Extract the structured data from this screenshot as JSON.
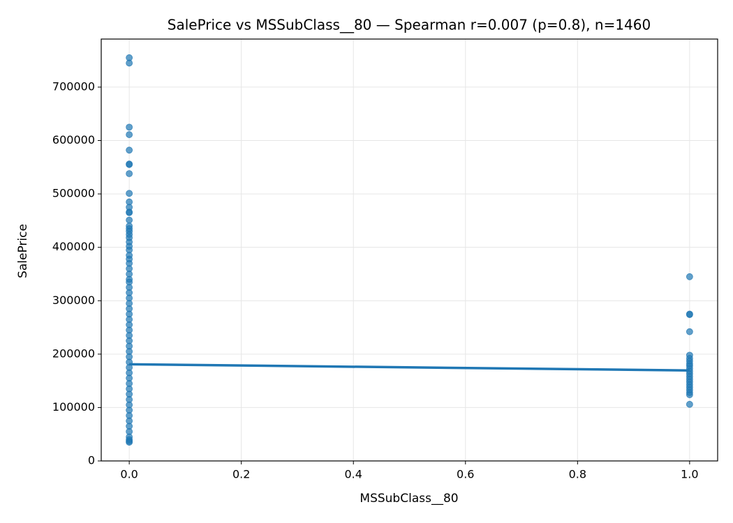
{
  "chart_data": {
    "type": "scatter",
    "title": "SalePrice vs MSSubClass__80 — Spearman r=0.007 (p=0.8), n=1460",
    "x_label": "MSSubClass__80",
    "y_label": "SalePrice",
    "color": "#1f77b4",
    "fit_color": "#1f77b4",
    "grid": true,
    "xlim": [
      -0.05,
      1.05
    ],
    "ylim": [
      0,
      790000
    ],
    "xticks": [
      {
        "value": 0,
        "label": "0.0"
      },
      0.2,
      0.4,
      0.6,
      0.8,
      {
        "value": 1,
        "label": "1.0"
      }
    ],
    "yticks": [
      0,
      100000,
      200000,
      300000,
      400000,
      500000,
      600000,
      700000
    ],
    "points": {
      "x": [
        0,
        0,
        0,
        0,
        0,
        0,
        0,
        0,
        0,
        0,
        0,
        0,
        0,
        0,
        0,
        0,
        0,
        0,
        0,
        0,
        0,
        0,
        0,
        0,
        0,
        0,
        0,
        0,
        0,
        0,
        0,
        0,
        0,
        0,
        0,
        0,
        0,
        0,
        0,
        0,
        0,
        0,
        0,
        0,
        0,
        0,
        0,
        0,
        0,
        0,
        0,
        0,
        0,
        0,
        0,
        0,
        0,
        0,
        0,
        0,
        0,
        1,
        1,
        1,
        1,
        1,
        1,
        1,
        1,
        1,
        1,
        1,
        1,
        1,
        1,
        1,
        1,
        1,
        1,
        1,
        1,
        1
      ],
      "y": [
        755000,
        745000,
        625000,
        611000,
        582000,
        556000,
        555000,
        538000,
        501000,
        485000,
        475000,
        466000,
        465000,
        451000,
        440000,
        435000,
        430000,
        424000,
        418000,
        410000,
        402000,
        395000,
        385000,
        378000,
        370000,
        360000,
        350000,
        340000,
        335000,
        325000,
        315000,
        305000,
        295000,
        285000,
        275000,
        265000,
        255000,
        245000,
        235000,
        225000,
        215000,
        205000,
        195000,
        185000,
        175000,
        165000,
        155000,
        145000,
        135000,
        125000,
        115000,
        105000,
        95000,
        85000,
        75000,
        65000,
        55000,
        45000,
        40000,
        37000,
        35000,
        345000,
        275000,
        274000,
        242000,
        198000,
        192000,
        187000,
        182000,
        178000,
        173000,
        168000,
        163000,
        158000,
        153000,
        148000,
        143000,
        138000,
        133000,
        128000,
        124000,
        106000
      ]
    },
    "fit": {
      "x": [
        0,
        1
      ],
      "y": [
        181000,
        169500
      ]
    }
  }
}
